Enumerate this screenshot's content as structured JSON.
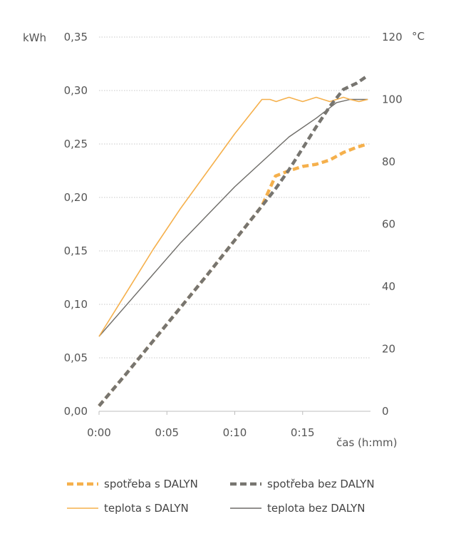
{
  "chart_data": {
    "type": "line",
    "xlabel": "čas (h:mm)",
    "x_ticks": [
      "0:00",
      "0:05",
      "0:10",
      "0:15"
    ],
    "x_range_minutes": [
      0,
      20
    ],
    "y_left": {
      "unit": "kWh",
      "ylim": [
        0,
        0.35
      ],
      "ticks": [
        "0,00",
        "0,05",
        "0,10",
        "0,15",
        "0,20",
        "0,25",
        "0,30",
        "0,35"
      ]
    },
    "y_right": {
      "unit": "°C",
      "ylim": [
        0,
        120
      ],
      "ticks": [
        "0",
        "20",
        "40",
        "60",
        "80",
        "100",
        "120"
      ]
    },
    "grid": true,
    "legend_position": "bottom",
    "series": [
      {
        "name": "spotřeba s DALYN",
        "axis": "left",
        "style": "dashed",
        "color": "#F5B04C",
        "x": [
          0,
          2,
          4,
          6,
          8,
          10,
          12,
          13,
          14,
          15,
          16,
          17,
          18,
          19,
          19.8
        ],
        "y": [
          0.005,
          0.035,
          0.066,
          0.097,
          0.128,
          0.16,
          0.192,
          0.22,
          0.225,
          0.229,
          0.231,
          0.235,
          0.242,
          0.247,
          0.25
        ]
      },
      {
        "name": "spotřeba bez DALYN",
        "axis": "left",
        "style": "dashed",
        "color": "#777570",
        "x": [
          0,
          2,
          4,
          6,
          8,
          10,
          12,
          13,
          14,
          15,
          16,
          17,
          18,
          19,
          19.8
        ],
        "y": [
          0.005,
          0.035,
          0.066,
          0.097,
          0.128,
          0.16,
          0.192,
          0.208,
          0.226,
          0.246,
          0.266,
          0.285,
          0.301,
          0.307,
          0.314
        ]
      },
      {
        "name": "teplota s DALYN",
        "axis": "right",
        "style": "solid",
        "color": "#F5B04C",
        "x": [
          0,
          2,
          4,
          6,
          8,
          10,
          12,
          12.6,
          13.5,
          14.5,
          15.5,
          16.5,
          17.5,
          18.5,
          19.8
        ],
        "y": [
          24,
          38,
          52,
          65,
          77,
          89,
          100,
          100,
          100,
          100,
          100,
          100,
          100,
          100,
          100
        ]
      },
      {
        "name": "teplota bez DALYN",
        "axis": "right",
        "style": "solid",
        "color": "#6E6C68",
        "x": [
          0,
          2,
          4,
          6,
          8,
          10,
          12,
          14,
          16,
          17.5,
          18.5,
          19.8
        ],
        "y": [
          24,
          34,
          44,
          54,
          63,
          72,
          80,
          88,
          94,
          99,
          100,
          100
        ]
      }
    ]
  }
}
